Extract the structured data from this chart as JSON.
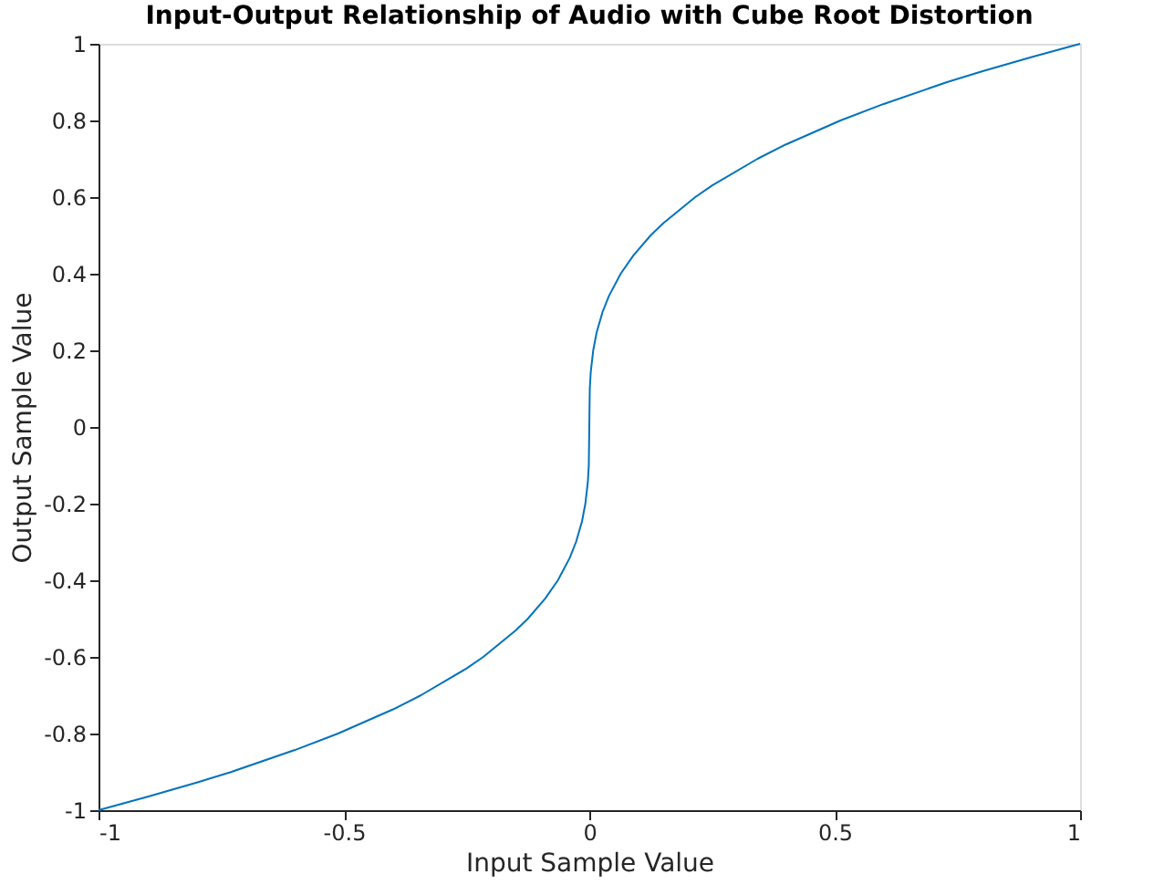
{
  "chart_data": {
    "type": "line",
    "title": "Input-Output Relationship of Audio with Cube Root Distortion",
    "xlabel": "Input Sample Value",
    "ylabel": "Output Sample Value",
    "x": [
      -1,
      -0.9,
      -0.8,
      -0.729,
      -0.6,
      -0.512,
      -0.4,
      -0.343,
      -0.25,
      -0.216,
      -0.15,
      -0.125,
      -0.09,
      -0.064,
      -0.04,
      -0.027,
      -0.015,
      -0.008,
      -0.003,
      -0.001,
      0,
      0.001,
      0.003,
      0.008,
      0.015,
      0.027,
      0.04,
      0.064,
      0.09,
      0.125,
      0.15,
      0.216,
      0.25,
      0.343,
      0.4,
      0.512,
      0.6,
      0.729,
      0.8,
      0.9,
      1
    ],
    "series": [
      {
        "color": "#0072bd",
        "values": [
          -1,
          -0.965,
          -0.928,
          -0.9,
          -0.843,
          -0.8,
          -0.737,
          -0.7,
          -0.63,
          -0.6,
          -0.531,
          -0.5,
          -0.448,
          -0.4,
          -0.342,
          -0.3,
          -0.247,
          -0.2,
          -0.144,
          -0.1,
          0,
          0.1,
          0.144,
          0.2,
          0.247,
          0.3,
          0.342,
          0.4,
          0.448,
          0.5,
          0.531,
          0.6,
          0.63,
          0.7,
          0.737,
          0.8,
          0.843,
          0.9,
          0.928,
          0.965,
          1
        ]
      }
    ],
    "xlim": [
      -1,
      1
    ],
    "ylim": [
      -1,
      1
    ],
    "xticks": [
      -1,
      -0.5,
      0,
      0.5,
      1
    ],
    "yticks": [
      -1,
      -0.8,
      -0.6,
      -0.4,
      -0.2,
      0,
      0.2,
      0.4,
      0.6,
      0.8,
      1
    ],
    "grid": false,
    "marker": "none",
    "line_style": "solid"
  }
}
